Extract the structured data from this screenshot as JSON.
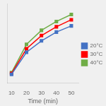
{
  "chart_data": {
    "type": "line",
    "x": [
      10,
      20,
      30,
      40,
      50
    ],
    "series": [
      {
        "name": "20°C",
        "color": "#4472c4",
        "values": [
          0.1,
          0.35,
          0.48,
          0.58,
          0.65
        ]
      },
      {
        "name": "30°C",
        "color": "#ff0000",
        "values": [
          0.11,
          0.39,
          0.54,
          0.64,
          0.72
        ]
      },
      {
        "name": "40°C",
        "color": "#70ad47",
        "values": [
          0.12,
          0.44,
          0.6,
          0.7,
          0.78
        ]
      }
    ],
    "x_label": "Time (min)",
    "xlim": [
      7,
      55
    ],
    "xticks": [
      10,
      20,
      30,
      40,
      50
    ],
    "ylim": [
      0.0,
      0.9
    ],
    "tick_labels": "x",
    "grid": false,
    "legend": "right",
    "marker": "square"
  }
}
